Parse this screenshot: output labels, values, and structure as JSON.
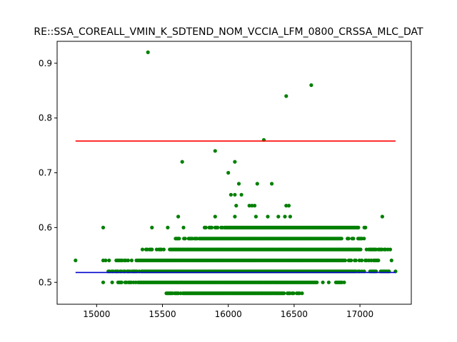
{
  "chart_data": {
    "type": "scatter",
    "title": "RE::SSA_COREALL_VMIN_K_SDTEND_NOM_VCCIA_LFM_0800_CRSSA_MLC_DAT",
    "xlabel": "",
    "ylabel": "",
    "xlim": [
      14700,
      17390
    ],
    "ylim": [
      0.46,
      0.94
    ],
    "x_ticks": [
      "15000",
      "15500",
      "16000",
      "16500",
      "17000"
    ],
    "x_tick_values": [
      15000,
      15500,
      16000,
      16500,
      17000
    ],
    "y_ticks": [
      "0.5",
      "0.6",
      "0.7",
      "0.8",
      "0.9"
    ],
    "y_tick_values": [
      0.5,
      0.6,
      0.7,
      0.8,
      0.9
    ],
    "grid": false,
    "colors": {
      "points": "#008000",
      "upper_line": "#ff0000",
      "lower_line": "#0000cc"
    },
    "reference_lines": [
      {
        "y": 0.758,
        "x_range": [
          14840,
          17270
        ],
        "color": "#ff0000"
      },
      {
        "y": 0.518,
        "x_range": [
          14840,
          17270
        ],
        "color": "#0000cc"
      }
    ],
    "series": [
      {
        "points": [
          [
            15390,
            0.92
          ],
          [
            16440,
            0.84
          ],
          [
            16630,
            0.86
          ],
          [
            16270,
            0.76
          ],
          [
            15900,
            0.74
          ],
          [
            16000,
            0.7
          ],
          [
            16050,
            0.72
          ],
          [
            15650,
            0.72
          ],
          [
            16080,
            0.68
          ],
          [
            16220,
            0.68
          ],
          [
            16330,
            0.68
          ],
          [
            16020,
            0.66
          ],
          [
            16050,
            0.66
          ],
          [
            16100,
            0.66
          ],
          [
            16200,
            0.64
          ],
          [
            16180,
            0.64
          ],
          [
            16440,
            0.64
          ],
          [
            16460,
            0.64
          ],
          [
            16160,
            0.64
          ],
          [
            16060,
            0.64
          ],
          [
            15620,
            0.62
          ],
          [
            15900,
            0.62
          ],
          [
            16050,
            0.62
          ],
          [
            16210,
            0.62
          ],
          [
            16300,
            0.62
          ],
          [
            16380,
            0.62
          ],
          [
            16430,
            0.62
          ],
          [
            16470,
            0.62
          ],
          [
            17170,
            0.62
          ],
          [
            15050,
            0.6
          ],
          [
            15420,
            0.6
          ],
          [
            15540,
            0.6
          ],
          [
            15660,
            0.6
          ],
          [
            14840,
            0.54
          ],
          [
            17240,
            0.54
          ],
          [
            17270,
            0.52
          ],
          [
            15050,
            0.5
          ],
          [
            16520,
            0.48
          ],
          [
            16560,
            0.48
          ],
          [
            15540,
            0.48
          ]
        ],
        "bands": [
          {
            "y": 0.48,
            "x_from": 15530,
            "x_to": 16540
          },
          {
            "y": 0.5,
            "x_from": 15100,
            "x_to": 16880
          },
          {
            "y": 0.52,
            "x_from": 15080,
            "x_to": 17230
          },
          {
            "y": 0.54,
            "x_from": 15050,
            "x_to": 17140
          },
          {
            "y": 0.56,
            "x_from": 15330,
            "x_to": 17230
          },
          {
            "y": 0.58,
            "x_from": 15600,
            "x_to": 17040
          },
          {
            "y": 0.6,
            "x_from": 15820,
            "x_to": 17060
          }
        ]
      }
    ]
  }
}
